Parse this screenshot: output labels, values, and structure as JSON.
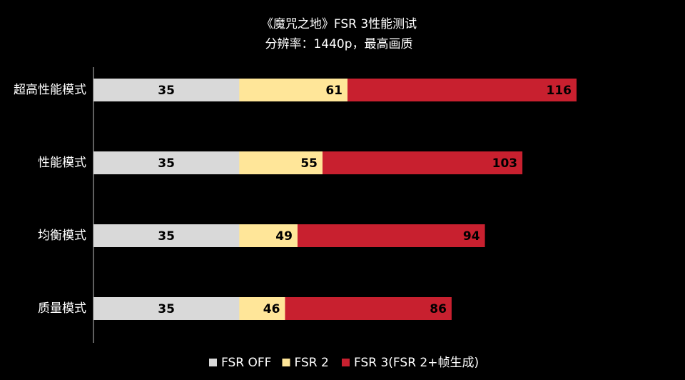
{
  "chart_data": {
    "type": "bar",
    "title": "《魔咒之地》FSR 3性能测试",
    "subtitle": "分辨率：1440p，最高画质",
    "categories": [
      "超高性能模式",
      "性能模式",
      "均衡模式",
      "质量模式"
    ],
    "series": [
      {
        "name": "FSR OFF",
        "color": "#d9d9d9",
        "values": [
          35,
          35,
          35,
          35
        ]
      },
      {
        "name": "FSR 2",
        "color": "#ffe699",
        "values": [
          61,
          55,
          49,
          46
        ]
      },
      {
        "name": "FSR 3(FSR 2+帧生成)",
        "color": "#c8202f",
        "values": [
          116,
          103,
          94,
          86
        ]
      }
    ],
    "legend": "bottom"
  }
}
